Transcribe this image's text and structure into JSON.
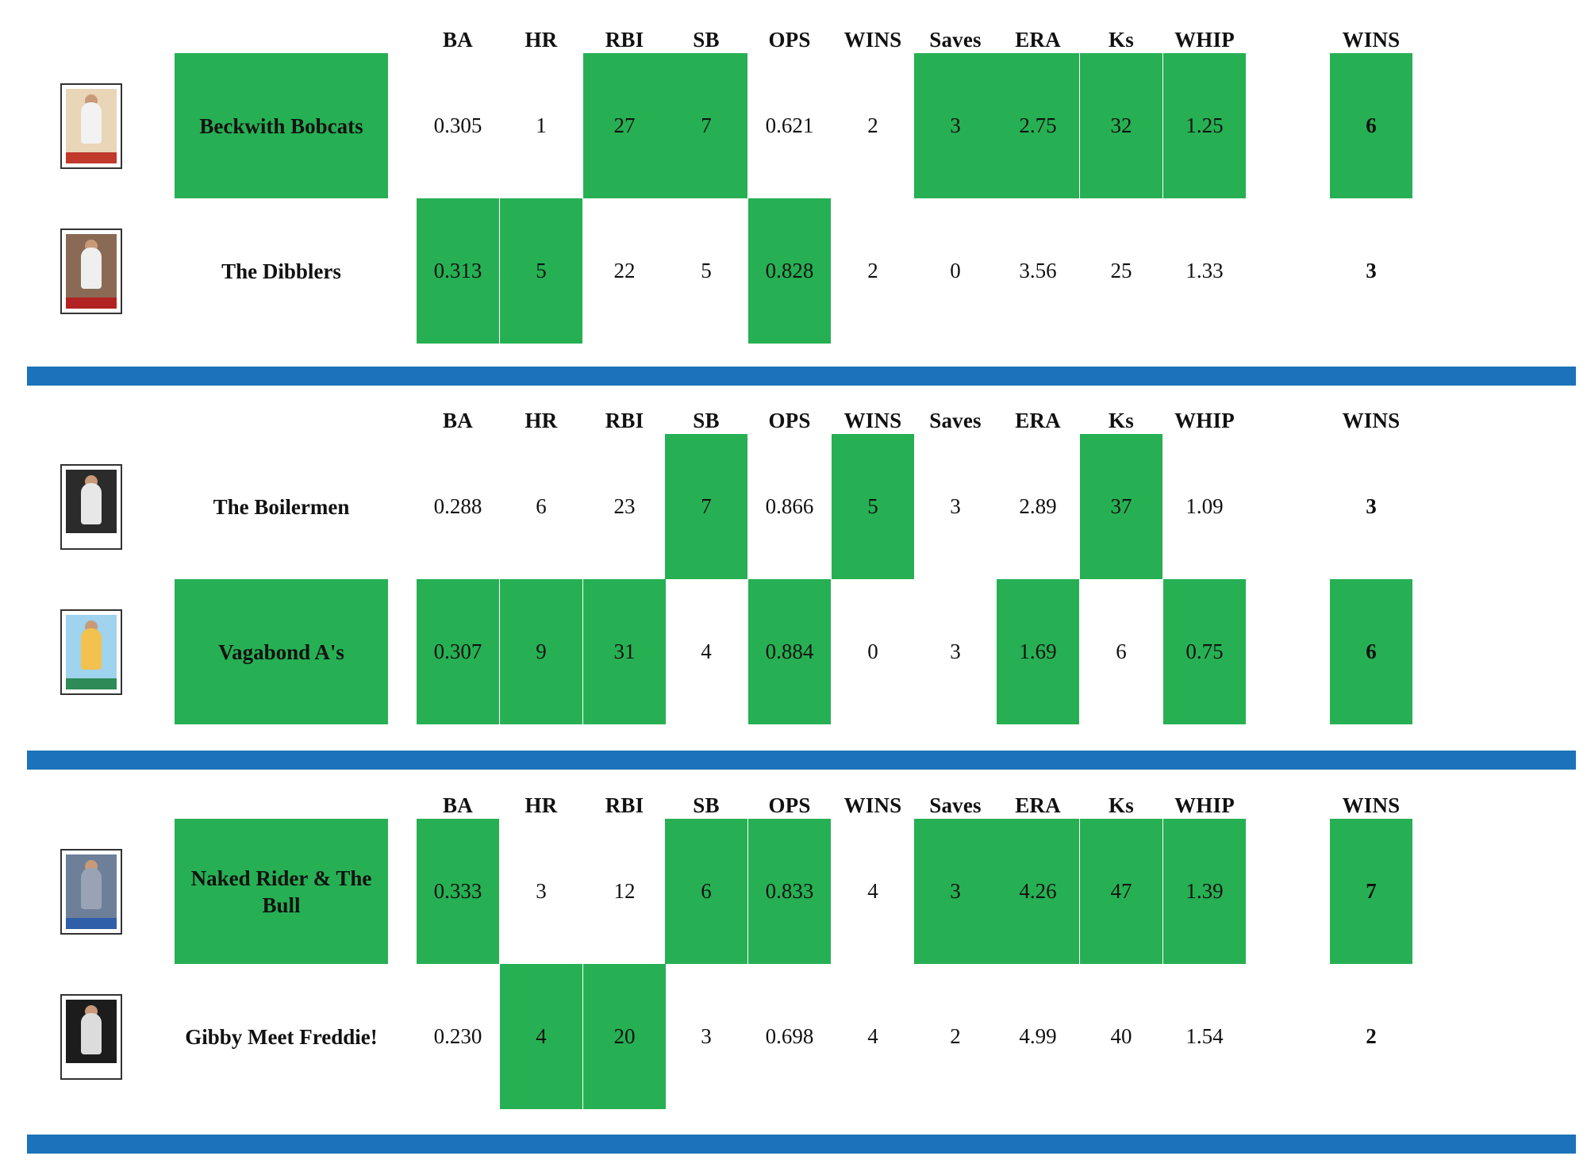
{
  "columns": [
    "BA",
    "HR",
    "RBI",
    "SB",
    "OPS",
    "WINS",
    "Saves",
    "ERA",
    "Ks",
    "WHIP"
  ],
  "total_label": "WINS",
  "colors": {
    "highlight": "#26b053",
    "divider": "#1a73bb"
  },
  "matchups": [
    {
      "teams": [
        {
          "name": "Beckwith Bobcats",
          "card_icon": "baseball-card-pitcher-icon",
          "stats": [
            "0.305",
            "1",
            "27",
            "7",
            "0.621",
            "2",
            "3",
            "2.75",
            "32",
            "1.25"
          ],
          "wins": "6",
          "name_won": true,
          "wins_won": true,
          "won": [
            false,
            false,
            true,
            true,
            false,
            false,
            true,
            true,
            true,
            true
          ]
        },
        {
          "name": "The Dibblers",
          "card_icon": "baseball-card-player-icon",
          "stats": [
            "0.313",
            "5",
            "22",
            "5",
            "0.828",
            "2",
            "0",
            "3.56",
            "25",
            "1.33"
          ],
          "wins": "3",
          "name_won": false,
          "wins_won": false,
          "won": [
            true,
            true,
            false,
            false,
            true,
            false,
            false,
            false,
            false,
            false
          ]
        }
      ]
    },
    {
      "teams": [
        {
          "name": "The Boilermen",
          "card_icon": "baseball-card-player-icon",
          "stats": [
            "0.288",
            "6",
            "23",
            "7",
            "0.866",
            "5",
            "3",
            "2.89",
            "37",
            "1.09"
          ],
          "wins": "3",
          "name_won": false,
          "wins_won": false,
          "won": [
            false,
            false,
            false,
            true,
            false,
            true,
            false,
            false,
            true,
            false
          ]
        },
        {
          "name": "Vagabond A's",
          "card_icon": "baseball-card-batter-icon",
          "stats": [
            "0.307",
            "9",
            "31",
            "4",
            "0.884",
            "0",
            "3",
            "1.69",
            "6",
            "0.75"
          ],
          "wins": "6",
          "name_won": true,
          "wins_won": true,
          "won": [
            true,
            true,
            true,
            false,
            true,
            false,
            false,
            true,
            false,
            true
          ]
        }
      ]
    },
    {
      "teams": [
        {
          "name": "Naked Rider & The Bull",
          "card_icon": "baseball-card-batter-icon",
          "stats": [
            "0.333",
            "3",
            "12",
            "6",
            "0.833",
            "4",
            "3",
            "4.26",
            "47",
            "1.39"
          ],
          "wins": "7",
          "name_won": true,
          "wins_won": true,
          "won": [
            true,
            false,
            false,
            true,
            true,
            false,
            true,
            true,
            true,
            true
          ]
        },
        {
          "name": "Gibby Meet Freddie!",
          "card_icon": "baseball-card-player-icon",
          "stats": [
            "0.230",
            "4",
            "20",
            "3",
            "0.698",
            "4",
            "2",
            "4.99",
            "40",
            "1.54"
          ],
          "wins": "2",
          "name_won": false,
          "wins_won": false,
          "won": [
            false,
            true,
            true,
            false,
            false,
            false,
            false,
            false,
            false,
            false
          ]
        }
      ]
    }
  ]
}
